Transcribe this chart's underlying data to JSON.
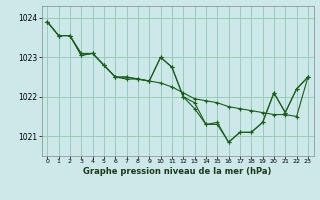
{
  "title": "Graphe pression niveau de la mer (hPa)",
  "background_color": "#cce8e8",
  "grid_color": "#99ccbb",
  "line_color": "#1a5e1a",
  "xlim": [
    -0.5,
    23.5
  ],
  "ylim": [
    1020.5,
    1024.3
  ],
  "yticks": [
    1021,
    1022,
    1023,
    1024
  ],
  "xticks": [
    0,
    1,
    2,
    3,
    4,
    5,
    6,
    7,
    8,
    9,
    10,
    11,
    12,
    13,
    14,
    15,
    16,
    17,
    18,
    19,
    20,
    21,
    22,
    23
  ],
  "series": [
    [
      1023.9,
      1023.55,
      1023.55,
      1023.1,
      1023.1,
      1022.8,
      1022.5,
      1022.45,
      1022.45,
      1022.4,
      1023.0,
      1022.75,
      1022.0,
      1021.85,
      1021.3,
      1021.35,
      1020.85,
      1021.1,
      1021.1,
      1021.35,
      1022.1,
      1021.6,
      1022.2,
      1022.5
    ],
    [
      1023.9,
      1023.55,
      1023.55,
      1023.05,
      1023.1,
      1022.8,
      1022.5,
      1022.5,
      1022.45,
      1022.4,
      1022.35,
      1022.25,
      1022.1,
      1021.95,
      1021.9,
      1021.85,
      1021.75,
      1021.7,
      1021.65,
      1021.6,
      1021.55,
      1021.55,
      1021.5,
      1022.5
    ],
    [
      1023.9,
      1023.55,
      1023.55,
      1023.05,
      1023.1,
      1022.8,
      1022.5,
      1022.5,
      1022.45,
      1022.4,
      1023.0,
      1022.75,
      1022.0,
      1021.7,
      1021.3,
      1021.3,
      1020.85,
      1021.1,
      1021.1,
      1021.35,
      1022.1,
      1021.6,
      1022.2,
      1022.5
    ]
  ]
}
